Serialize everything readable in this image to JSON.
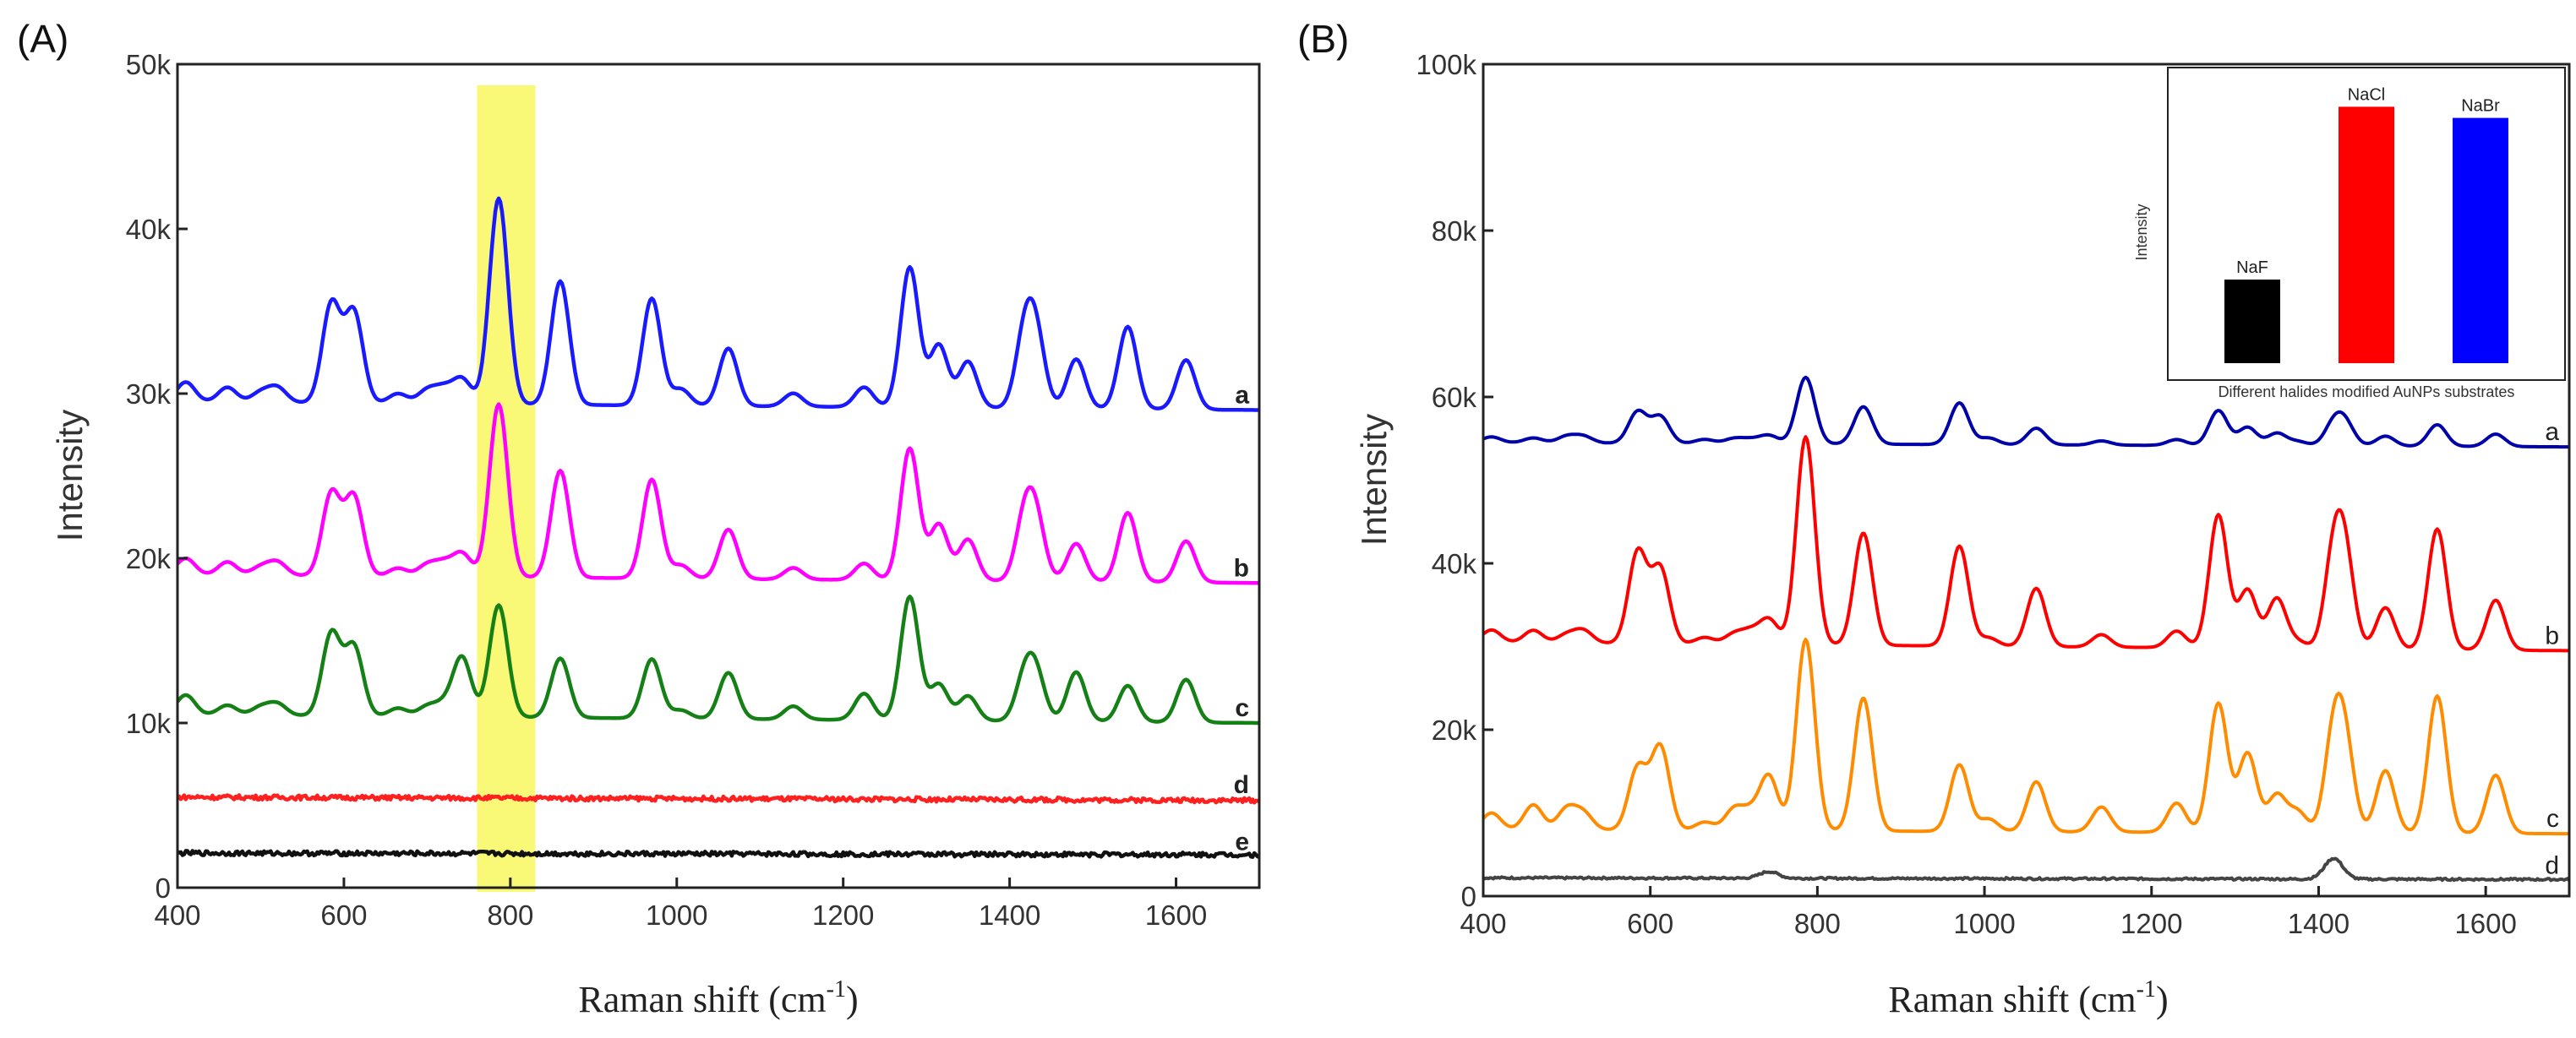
{
  "chart_data": [
    {
      "panel": "(A)",
      "type": "line",
      "xlabel": "Raman shift (cm",
      "xlabel_sup": "-1",
      "xlabel_close": ")",
      "ylabel": "Intensity",
      "xlim": [
        400,
        1700
      ],
      "ylim": [
        0,
        50000
      ],
      "x_ticks": [
        400,
        600,
        800,
        1000,
        1200,
        1400,
        1600
      ],
      "x_tick_labels": [
        "400",
        "600",
        "800",
        "1000",
        "1200",
        "1400",
        "1600"
      ],
      "y_ticks": [
        0,
        10000,
        20000,
        30000,
        40000,
        50000
      ],
      "y_tick_labels": [
        "0",
        "10k",
        "20k",
        "30k",
        "40k",
        "50k"
      ],
      "highlight": {
        "x_range": [
          760,
          830
        ],
        "color": "#f7f54a"
      },
      "peak_positions": [
        410,
        460,
        500,
        520,
        585,
        612,
        665,
        700,
        720,
        742,
        786,
        860,
        970,
        1005,
        1062,
        1140,
        1225,
        1280,
        1315,
        1350,
        1418,
        1432,
        1480,
        1542,
        1612
      ],
      "series": [
        {
          "name": "a",
          "color": "#1a1aff",
          "bold": true,
          "noise": 0,
          "baseline": {
            "start": 29500,
            "end": 29000
          },
          "peak_heights": [
            1200,
            900,
            600,
            900,
            6000,
            5500,
            600,
            800,
            900,
            1500,
            12500,
            7500,
            6500,
            1000,
            3500,
            800,
            1200,
            8500,
            3800,
            2800,
            4200,
            4000,
            3000,
            5000,
            3000
          ]
        },
        {
          "name": "b",
          "color": "#ff00ff",
          "bold": true,
          "noise": 0,
          "baseline": {
            "start": 19000,
            "end": 18500
          },
          "peak_heights": [
            1000,
            800,
            500,
            800,
            5000,
            4800,
            500,
            700,
            800,
            1400,
            10500,
            6500,
            6000,
            800,
            3000,
            700,
            1000,
            8000,
            3400,
            2500,
            3600,
            3400,
            2300,
            4200,
            2500
          ]
        },
        {
          "name": "c",
          "color": "#158015",
          "bold": true,
          "noise": 0,
          "baseline": {
            "start": 10500,
            "end": 10000
          },
          "peak_heights": [
            1200,
            600,
            500,
            700,
            5000,
            4200,
            500,
            600,
            700,
            3600,
            6800,
            3600,
            3600,
            500,
            2800,
            800,
            1600,
            7500,
            2200,
            1500,
            2500,
            2600,
            3000,
            2200,
            2600
          ]
        },
        {
          "name": "d",
          "color": "#ff2020",
          "bold": true,
          "noise": 140,
          "baseline": {
            "start": 5500,
            "end": 5300
          },
          "peak_heights": [
            0,
            0,
            0,
            0,
            0,
            0,
            0,
            0,
            0,
            0,
            0,
            0,
            0,
            0,
            0,
            0,
            0,
            0,
            0,
            0,
            0,
            0,
            0,
            0,
            0
          ]
        },
        {
          "name": "e",
          "color": "#111111",
          "bold": true,
          "noise": 140,
          "baseline": {
            "start": 2100,
            "end": 2000
          },
          "peak_heights": [
            0,
            0,
            0,
            0,
            0,
            0,
            0,
            0,
            0,
            0,
            0,
            0,
            0,
            0,
            0,
            0,
            0,
            0,
            0,
            0,
            0,
            0,
            0,
            0,
            0
          ]
        }
      ]
    },
    {
      "panel": "(B)",
      "type": "line",
      "xlabel": "Raman shift (cm",
      "xlabel_sup": "-1",
      "xlabel_close": ")",
      "ylabel": "Intensity",
      "xlim": [
        400,
        1700
      ],
      "ylim": [
        0,
        100000
      ],
      "x_ticks": [
        400,
        600,
        800,
        1000,
        1200,
        1400,
        1600
      ],
      "x_tick_labels": [
        "400",
        "600",
        "800",
        "1000",
        "1200",
        "1400",
        "1600"
      ],
      "y_ticks": [
        0,
        20000,
        40000,
        60000,
        80000,
        100000
      ],
      "y_tick_labels": [
        "0",
        "20k",
        "40k",
        "60k",
        "80k",
        "100k"
      ],
      "peak_positions": [
        410,
        460,
        500,
        520,
        585,
        612,
        665,
        700,
        720,
        742,
        786,
        855,
        970,
        1005,
        1062,
        1140,
        1230,
        1280,
        1315,
        1350,
        1375,
        1418,
        1432,
        1480,
        1542,
        1612
      ],
      "series": [
        {
          "name": "a",
          "color": "#0000aa",
          "bold": false,
          "noise": 0,
          "baseline": {
            "start": 54500,
            "end": 54000
          },
          "peak_heights": [
            700,
            600,
            800,
            800,
            3800,
            3200,
            500,
            600,
            500,
            1000,
            8000,
            4500,
            5000,
            800,
            2000,
            500,
            700,
            4200,
            2200,
            1500,
            500,
            2500,
            2500,
            1200,
            2600,
            1500
          ]
        },
        {
          "name": "b",
          "color": "#ff0000",
          "bold": false,
          "noise": 0,
          "baseline": {
            "start": 30500,
            "end": 29500
          },
          "peak_heights": [
            1500,
            1500,
            1000,
            1500,
            11000,
            9000,
            800,
            1200,
            1500,
            3000,
            25000,
            13500,
            12000,
            1000,
            7000,
            1500,
            2000,
            16000,
            7000,
            6000,
            800,
            10500,
            10000,
            5000,
            14500,
            6000
          ]
        },
        {
          "name": "c",
          "color": "#ff8c00",
          "bold": false,
          "noise": 0,
          "baseline": {
            "start": 8000,
            "end": 7500
          },
          "peak_heights": [
            2000,
            3000,
            2500,
            2000,
            7500,
            10000,
            1000,
            2500,
            2000,
            6500,
            23000,
            16000,
            8000,
            1500,
            6000,
            3000,
            3500,
            15500,
            9500,
            4500,
            2500,
            11000,
            9500,
            7500,
            16500,
            7000
          ]
        },
        {
          "name": "d",
          "color": "#444444",
          "bold": false,
          "noise": 120,
          "baseline": {
            "start": 2200,
            "end": 2000
          },
          "peak_heights": [
            0,
            0,
            0,
            0,
            0,
            0,
            0,
            0,
            0,
            800,
            0,
            0,
            0,
            0,
            0,
            0,
            0,
            0,
            0,
            0,
            0,
            2500,
            0,
            0,
            0,
            0
          ]
        }
      ]
    },
    {
      "panel": "(B) inset",
      "type": "bar",
      "ylabel": "Intensity",
      "xlabel": "Different halides  modified AuNPs substrates",
      "categories": [
        "NaF",
        "NaCl",
        "NaBr"
      ],
      "values": [
        0.3,
        0.92,
        0.88
      ],
      "colors": [
        "#000000",
        "#ff0000",
        "#0000ff"
      ]
    }
  ]
}
